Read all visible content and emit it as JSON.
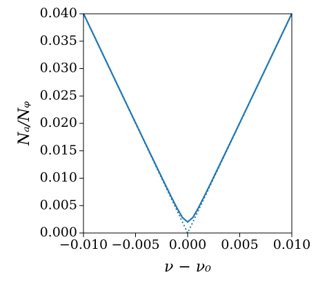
{
  "chart_data": {
    "type": "line",
    "xlabel": "ν − ν₀",
    "ylabel": "Nₐ/Nᵩ",
    "x": [
      -0.01,
      -0.009,
      -0.008,
      -0.007,
      -0.006,
      -0.005,
      -0.004,
      -0.003,
      -0.002,
      -0.0015,
      -0.001,
      -0.0005,
      0,
      0.0005,
      0.001,
      0.0015,
      0.002,
      0.003,
      0.004,
      0.005,
      0.006,
      0.007,
      0.008,
      0.009,
      0.01
    ],
    "series": [
      {
        "color": "#1f77b4",
        "style": "solid",
        "values": [
          0.04005,
          0.036056,
          0.032062,
          0.028071,
          0.024083,
          0.0201,
          0.016125,
          0.012166,
          0.008246,
          0.006325,
          0.004472,
          0.002828,
          0.002,
          0.002828,
          0.004472,
          0.006325,
          0.008246,
          0.012166,
          0.016125,
          0.0201,
          0.024083,
          0.028071,
          0.032062,
          0.036056,
          0.04005
        ]
      },
      {
        "color": "#1f77b4",
        "style": "dotted",
        "values": [
          0.04,
          0.036,
          0.032,
          0.028,
          0.024,
          0.02,
          0.016,
          0.012,
          0.008,
          0.006,
          0.004,
          0.002,
          0,
          0.002,
          0.004,
          0.006,
          0.008,
          0.012,
          0.016,
          0.02,
          0.024,
          0.028,
          0.032,
          0.036,
          0.04
        ]
      }
    ],
    "xlim": [
      -0.01,
      0.01
    ],
    "xticks": [
      {
        "value": -0.01,
        "label": "−0.010"
      },
      {
        "value": -0.005,
        "label": "−0.005"
      },
      {
        "value": 0,
        "label": "0.000"
      },
      {
        "value": 0.005,
        "label": "0.005"
      },
      {
        "value": 0.01,
        "label": "0.010"
      }
    ],
    "ylim": [
      0,
      0.04
    ],
    "yticks": [
      {
        "value": 0,
        "label": "0.000"
      },
      {
        "value": 0.005,
        "label": "0.005"
      },
      {
        "value": 0.01,
        "label": "0.010"
      },
      {
        "value": 0.015,
        "label": "0.015"
      },
      {
        "value": 0.02,
        "label": "0.020"
      },
      {
        "value": 0.025,
        "label": "0.025"
      },
      {
        "value": 0.03,
        "label": "0.030"
      },
      {
        "value": 0.035,
        "label": "0.035"
      },
      {
        "value": 0.04,
        "label": "0.040"
      }
    ],
    "grid": false
  }
}
